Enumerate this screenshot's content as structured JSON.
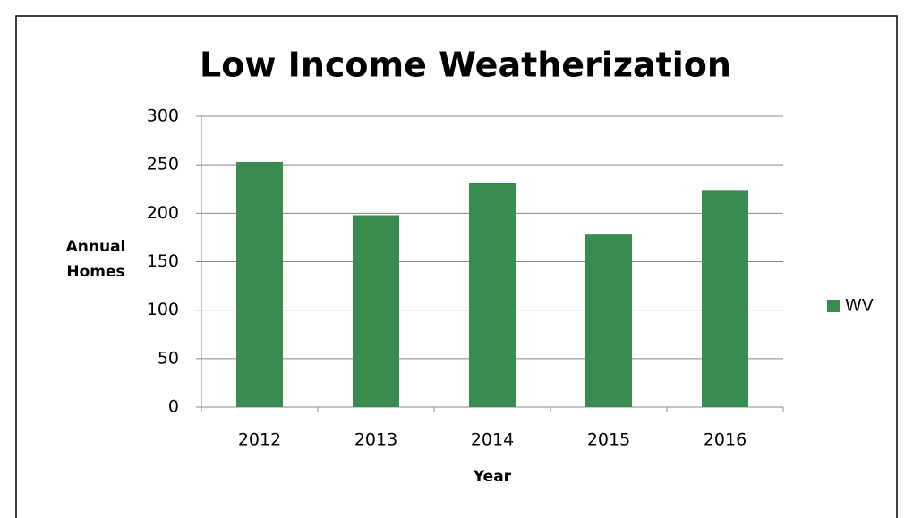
{
  "chart_data": {
    "type": "bar",
    "title": "Low Income Weatherization",
    "x_label": "Year",
    "y_label": "Annual Homes",
    "categories": [
      "2012",
      "2013",
      "2014",
      "2015",
      "2016"
    ],
    "series": [
      {
        "name": "WV",
        "color": "#3a8b50",
        "values": [
          253,
          198,
          231,
          178,
          224
        ]
      }
    ],
    "ylim": [
      0,
      300
    ],
    "yticks": [
      0,
      50,
      100,
      150,
      200,
      250,
      300
    ],
    "grid": true,
    "legend": "right"
  }
}
